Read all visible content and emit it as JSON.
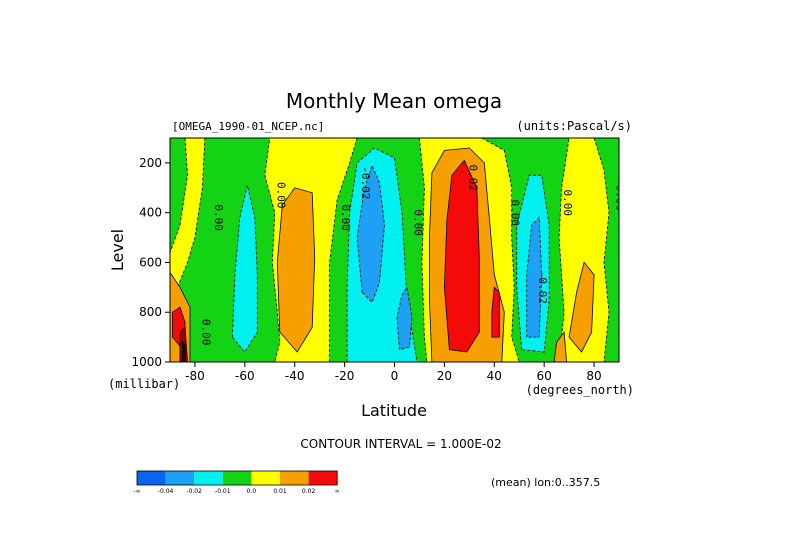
{
  "chart_data": {
    "type": "heatmap",
    "title": "Monthly Mean omega",
    "dataset_label": "[OMEGA_1990-01_NCEP.nc]",
    "units_label": "(units:Pascal/s)",
    "xlabel": "Latitude",
    "x_units": "(degrees_north)",
    "ylabel": "Level",
    "y_units": "(millibar)",
    "xlim": [
      -90,
      90
    ],
    "ylim": [
      1000,
      100
    ],
    "x_ticks": [
      "-80",
      "-60",
      "-40",
      "-20",
      "0",
      "20",
      "40",
      "60",
      "80"
    ],
    "x_tick_values": [
      -80,
      -60,
      -40,
      -20,
      0,
      20,
      40,
      60,
      80
    ],
    "y_ticks": [
      "200",
      "400",
      "600",
      "800",
      "1000"
    ],
    "y_tick_values": [
      200,
      400,
      600,
      800,
      1000
    ],
    "contour_interval_text": "CONTOUR INTERVAL = 1.000E-02",
    "mean_text": "(mean) lon:0..357.5",
    "contour_labels": [
      {
        "text": "0.00",
        "x": -72,
        "y": 420
      },
      {
        "text": "0.00",
        "x": -47,
        "y": 330
      },
      {
        "text": "0.00",
        "x": -21,
        "y": 420
      },
      {
        "text": "-0.02",
        "x": -13,
        "y": 280
      },
      {
        "text": "0.00",
        "x": 8,
        "y": 440
      },
      {
        "text": "0.02",
        "x": 30,
        "y": 260
      },
      {
        "text": "0.00",
        "x": 47,
        "y": 400
      },
      {
        "text": "-0.02",
        "x": 58,
        "y": 700
      },
      {
        "text": "0.00",
        "x": 68,
        "y": 360
      },
      {
        "text": "0.00",
        "x": 89,
        "y": 340
      },
      {
        "text": "0.00",
        "x": -77,
        "y": 880
      }
    ],
    "legend": {
      "colors": [
        "#0a64f0",
        "#1ea0f5",
        "#00f0f0",
        "#14d214",
        "#ffff00",
        "#f5a000",
        "#f50a0a"
      ],
      "labels": [
        "-∞",
        "-0.04",
        "-0.02",
        "-0.01",
        "0.0",
        "0.01",
        "0.02",
        "∞"
      ]
    },
    "fill_colors": {
      "deep_blue": "#1e8ce6",
      "blue": "#1ea0f5",
      "cyan": "#00f0f0",
      "green": "#14d214",
      "yellow": "#ffff00",
      "orange": "#f5a000",
      "red": "#f50a0a",
      "dark_red": "#a00000",
      "near_black": "#3c0000"
    }
  }
}
